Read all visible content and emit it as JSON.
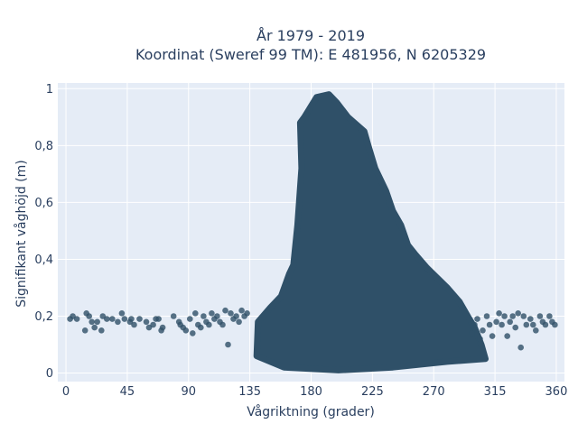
{
  "chart_data": {
    "type": "scatter",
    "title": "År 1979 - 2019",
    "subtitle": "Koordinat (Sweref 99 TM): E 481956, N 6205329",
    "xlabel": "Vågriktning (grader)",
    "ylabel": "Signifikant våghöjd (m)",
    "xlim": [
      -6,
      366
    ],
    "ylim": [
      -0.03,
      1.02
    ],
    "xticks": [
      0,
      45,
      90,
      135,
      180,
      225,
      270,
      315,
      360
    ],
    "xtick_labels": [
      "0",
      "45",
      "90",
      "135",
      "180",
      "225",
      "270",
      "315",
      "360"
    ],
    "yticks": [
      0,
      0.2,
      0.4,
      0.6,
      0.8,
      1
    ],
    "ytick_labels": [
      "0",
      "0,2",
      "0,4",
      "0,6",
      "0,8",
      "1"
    ],
    "grid": true,
    "marker_color": "#2f5068",
    "plot_bg": "#e5ecf6",
    "points": [
      [
        3,
        0.19
      ],
      [
        5,
        0.2
      ],
      [
        8,
        0.19
      ],
      [
        14,
        0.15
      ],
      [
        15,
        0.21
      ],
      [
        17,
        0.2
      ],
      [
        19,
        0.18
      ],
      [
        21,
        0.16
      ],
      [
        23,
        0.18
      ],
      [
        26,
        0.15
      ],
      [
        27,
        0.2
      ],
      [
        30,
        0.19
      ],
      [
        34,
        0.19
      ],
      [
        38,
        0.18
      ],
      [
        41,
        0.21
      ],
      [
        43,
        0.19
      ],
      [
        47,
        0.18
      ],
      [
        48,
        0.19
      ],
      [
        50,
        0.17
      ],
      [
        54,
        0.19
      ],
      [
        59,
        0.18
      ],
      [
        61,
        0.16
      ],
      [
        64,
        0.17
      ],
      [
        66,
        0.19
      ],
      [
        68,
        0.19
      ],
      [
        70,
        0.15
      ],
      [
        71,
        0.16
      ],
      [
        79,
        0.2
      ],
      [
        83,
        0.18
      ],
      [
        84,
        0.17
      ],
      [
        86,
        0.16
      ],
      [
        88,
        0.15
      ],
      [
        91,
        0.19
      ],
      [
        93,
        0.14
      ],
      [
        95,
        0.21
      ],
      [
        97,
        0.17
      ],
      [
        99,
        0.16
      ],
      [
        101,
        0.2
      ],
      [
        103,
        0.18
      ],
      [
        105,
        0.17
      ],
      [
        107,
        0.21
      ],
      [
        109,
        0.19
      ],
      [
        111,
        0.2
      ],
      [
        113,
        0.18
      ],
      [
        115,
        0.17
      ],
      [
        117,
        0.22
      ],
      [
        119,
        0.1
      ],
      [
        121,
        0.21
      ],
      [
        123,
        0.19
      ],
      [
        125,
        0.2
      ],
      [
        127,
        0.18
      ],
      [
        129,
        0.22
      ],
      [
        131,
        0.2
      ],
      [
        133,
        0.21
      ],
      [
        298,
        0.14
      ],
      [
        300,
        0.17
      ],
      [
        302,
        0.19
      ],
      [
        304,
        0.12
      ],
      [
        306,
        0.15
      ],
      [
        309,
        0.2
      ],
      [
        311,
        0.17
      ],
      [
        313,
        0.13
      ],
      [
        316,
        0.18
      ],
      [
        318,
        0.21
      ],
      [
        320,
        0.17
      ],
      [
        322,
        0.2
      ],
      [
        324,
        0.13
      ],
      [
        326,
        0.18
      ],
      [
        328,
        0.2
      ],
      [
        330,
        0.16
      ],
      [
        332,
        0.21
      ],
      [
        334,
        0.09
      ],
      [
        336,
        0.2
      ],
      [
        338,
        0.17
      ],
      [
        341,
        0.19
      ],
      [
        343,
        0.17
      ],
      [
        345,
        0.15
      ],
      [
        348,
        0.2
      ],
      [
        350,
        0.18
      ],
      [
        352,
        0.17
      ],
      [
        355,
        0.2
      ],
      [
        357,
        0.18
      ],
      [
        359,
        0.17
      ]
    ],
    "dense_region": {
      "description_of_shape": "envelope of overlapping points",
      "outline": [
        [
          140,
          0.06
        ],
        [
          141,
          0.18
        ],
        [
          150,
          0.23
        ],
        [
          158,
          0.27
        ],
        [
          164,
          0.35
        ],
        [
          167,
          0.38
        ],
        [
          170,
          0.52
        ],
        [
          173,
          0.72
        ],
        [
          172,
          0.88
        ],
        [
          175,
          0.9
        ],
        [
          184,
          0.97
        ],
        [
          193,
          0.98
        ],
        [
          199,
          0.95
        ],
        [
          207,
          0.9
        ],
        [
          219,
          0.85
        ],
        [
          222,
          0.8
        ],
        [
          227,
          0.72
        ],
        [
          235,
          0.64
        ],
        [
          240,
          0.57
        ],
        [
          246,
          0.52
        ],
        [
          251,
          0.45
        ],
        [
          256,
          0.42
        ],
        [
          265,
          0.37
        ],
        [
          280,
          0.3
        ],
        [
          289,
          0.25
        ],
        [
          295,
          0.2
        ],
        [
          300,
          0.16
        ],
        [
          305,
          0.1
        ],
        [
          308,
          0.05
        ],
        [
          280,
          0.04
        ],
        [
          240,
          0.02
        ],
        [
          200,
          0.01
        ],
        [
          160,
          0.02
        ]
      ]
    }
  }
}
